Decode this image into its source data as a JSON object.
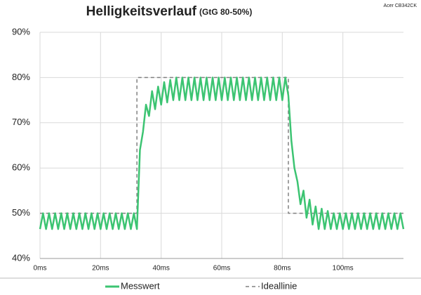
{
  "chart_data": {
    "type": "line",
    "title": "Helligkeitsverlauf",
    "subtitle": "(GtG 80-50%)",
    "annotation": "Acer CB342CK",
    "x": [
      0,
      1,
      2,
      3,
      4,
      5,
      6,
      7,
      8,
      9,
      10,
      11,
      12,
      13,
      14,
      15,
      16,
      17,
      18,
      19,
      20,
      21,
      22,
      23,
      24,
      25,
      26,
      27,
      28,
      29,
      30,
      31,
      32,
      33,
      34,
      35,
      36,
      37,
      38,
      39,
      40,
      41,
      42,
      43,
      44,
      45,
      46,
      47,
      48,
      49,
      50,
      51,
      52,
      53,
      54,
      55,
      56,
      57,
      58,
      59,
      60,
      61,
      62,
      63,
      64,
      65,
      66,
      67,
      68,
      69,
      70,
      71,
      72,
      73,
      74,
      75,
      76,
      77,
      78,
      79,
      80,
      81,
      82,
      83,
      84,
      85,
      86,
      87,
      88,
      89,
      90,
      91,
      92,
      93,
      94,
      95,
      96,
      97,
      98,
      99,
      100,
      101,
      102,
      103,
      104,
      105,
      106,
      107,
      108,
      109,
      110,
      111,
      112,
      113,
      114,
      115,
      116,
      117,
      118,
      119,
      120
    ],
    "series": [
      {
        "name": "Ideallinie",
        "color": "#808080",
        "dashed": true,
        "x": [
          0,
          32,
          32,
          82,
          82,
          120
        ],
        "values": [
          50,
          50,
          80,
          80,
          50,
          50
        ]
      },
      {
        "name": "Messwert",
        "color": "#3cc472",
        "dashed": false,
        "values": [
          46.5,
          50,
          46.5,
          50,
          46.5,
          50,
          46.5,
          50,
          46.5,
          50,
          46.5,
          50,
          46.5,
          50,
          46.5,
          50,
          46.5,
          50,
          46.5,
          50,
          46.5,
          50,
          46.5,
          50,
          46.5,
          50,
          46.5,
          50,
          46.5,
          50,
          46.5,
          50,
          46.5,
          64,
          68,
          74,
          71.5,
          77,
          73,
          78,
          74,
          79,
          74.5,
          79.5,
          75,
          80,
          75,
          80,
          75,
          80,
          75,
          80,
          75,
          80,
          75,
          80,
          75,
          80,
          75,
          80,
          75,
          80,
          75,
          80,
          75,
          80,
          75,
          80,
          75,
          80,
          75,
          80,
          75,
          80,
          75,
          80,
          75,
          80,
          75,
          80,
          75,
          80,
          76,
          66,
          60,
          57,
          52,
          55,
          49,
          53,
          47.5,
          51.5,
          46.5,
          51,
          46.5,
          50.5,
          46.5,
          50,
          46.5,
          50,
          46.5,
          50,
          46.5,
          50,
          46.5,
          50,
          46.5,
          50,
          46.5,
          50,
          46.5,
          50,
          46.5,
          50,
          46.5,
          50,
          46.5,
          50,
          46.5,
          50,
          46.5
        ]
      }
    ],
    "xlim": [
      0,
      120
    ],
    "xticks": [
      {
        "value": 0,
        "label": "0ms"
      },
      {
        "value": 20,
        "label": "20ms"
      },
      {
        "value": 40,
        "label": "40ms"
      },
      {
        "value": 60,
        "label": "60ms"
      },
      {
        "value": 80,
        "label": "80ms"
      },
      {
        "value": 100,
        "label": "100ms"
      }
    ],
    "ylim": [
      40,
      90
    ],
    "yticks": [
      {
        "value": 40,
        "label": "40%"
      },
      {
        "value": 50,
        "label": "50%"
      },
      {
        "value": 60,
        "label": "60%"
      },
      {
        "value": 70,
        "label": "70%"
      },
      {
        "value": 80,
        "label": "80%"
      },
      {
        "value": 90,
        "label": "90%"
      }
    ],
    "grid": true,
    "legend": "bottom"
  }
}
